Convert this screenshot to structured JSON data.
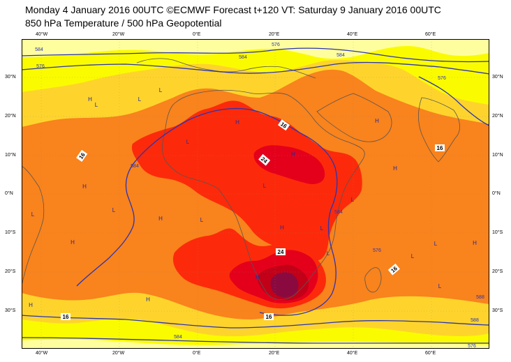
{
  "header": {
    "line1": "Monday 4 January 2016 00UTC ©ECMWF Forecast t+120 VT: Saturday 9 January 2016 00UTC",
    "line2": "850 hPa Temperature / 500 hPa Geopotential"
  },
  "axes": {
    "lon_ticks": [
      "40°W",
      "20°W",
      "0°E",
      "20°E",
      "40°E",
      "60°E"
    ],
    "lat_ticks": [
      "30°N",
      "20°N",
      "10°N",
      "0°N",
      "10°S",
      "20°S",
      "30°S"
    ]
  },
  "colors": {
    "t_lt8": "#fffe9e",
    "t_8": "#fbfb00",
    "t_12": "#fed42c",
    "t_16": "#f9831c",
    "t_20": "#fc2a0a",
    "t_24": "#e4001b",
    "t_28": "#c20018",
    "t_32": "#8a0a40",
    "geo_line": "#2a33b4",
    "coast": "#555555"
  },
  "isotherm_labels": [
    "16",
    "16",
    "16",
    "16",
    "16",
    "24",
    "24",
    "16"
  ],
  "geopotential_labels": [
    "584",
    "576",
    "584",
    "576",
    "584",
    "576",
    "584",
    "584",
    "576",
    "584",
    "588",
    "576",
    "588"
  ],
  "pressure_centres": [
    "H",
    "L",
    "L",
    "H",
    "L",
    "H",
    "H",
    "L",
    "H",
    "L",
    "H",
    "L",
    "L",
    "H",
    "H",
    "L",
    "H",
    "L",
    "H",
    "L",
    "L",
    "L",
    "H",
    "L",
    "H",
    "H",
    "L"
  ]
}
